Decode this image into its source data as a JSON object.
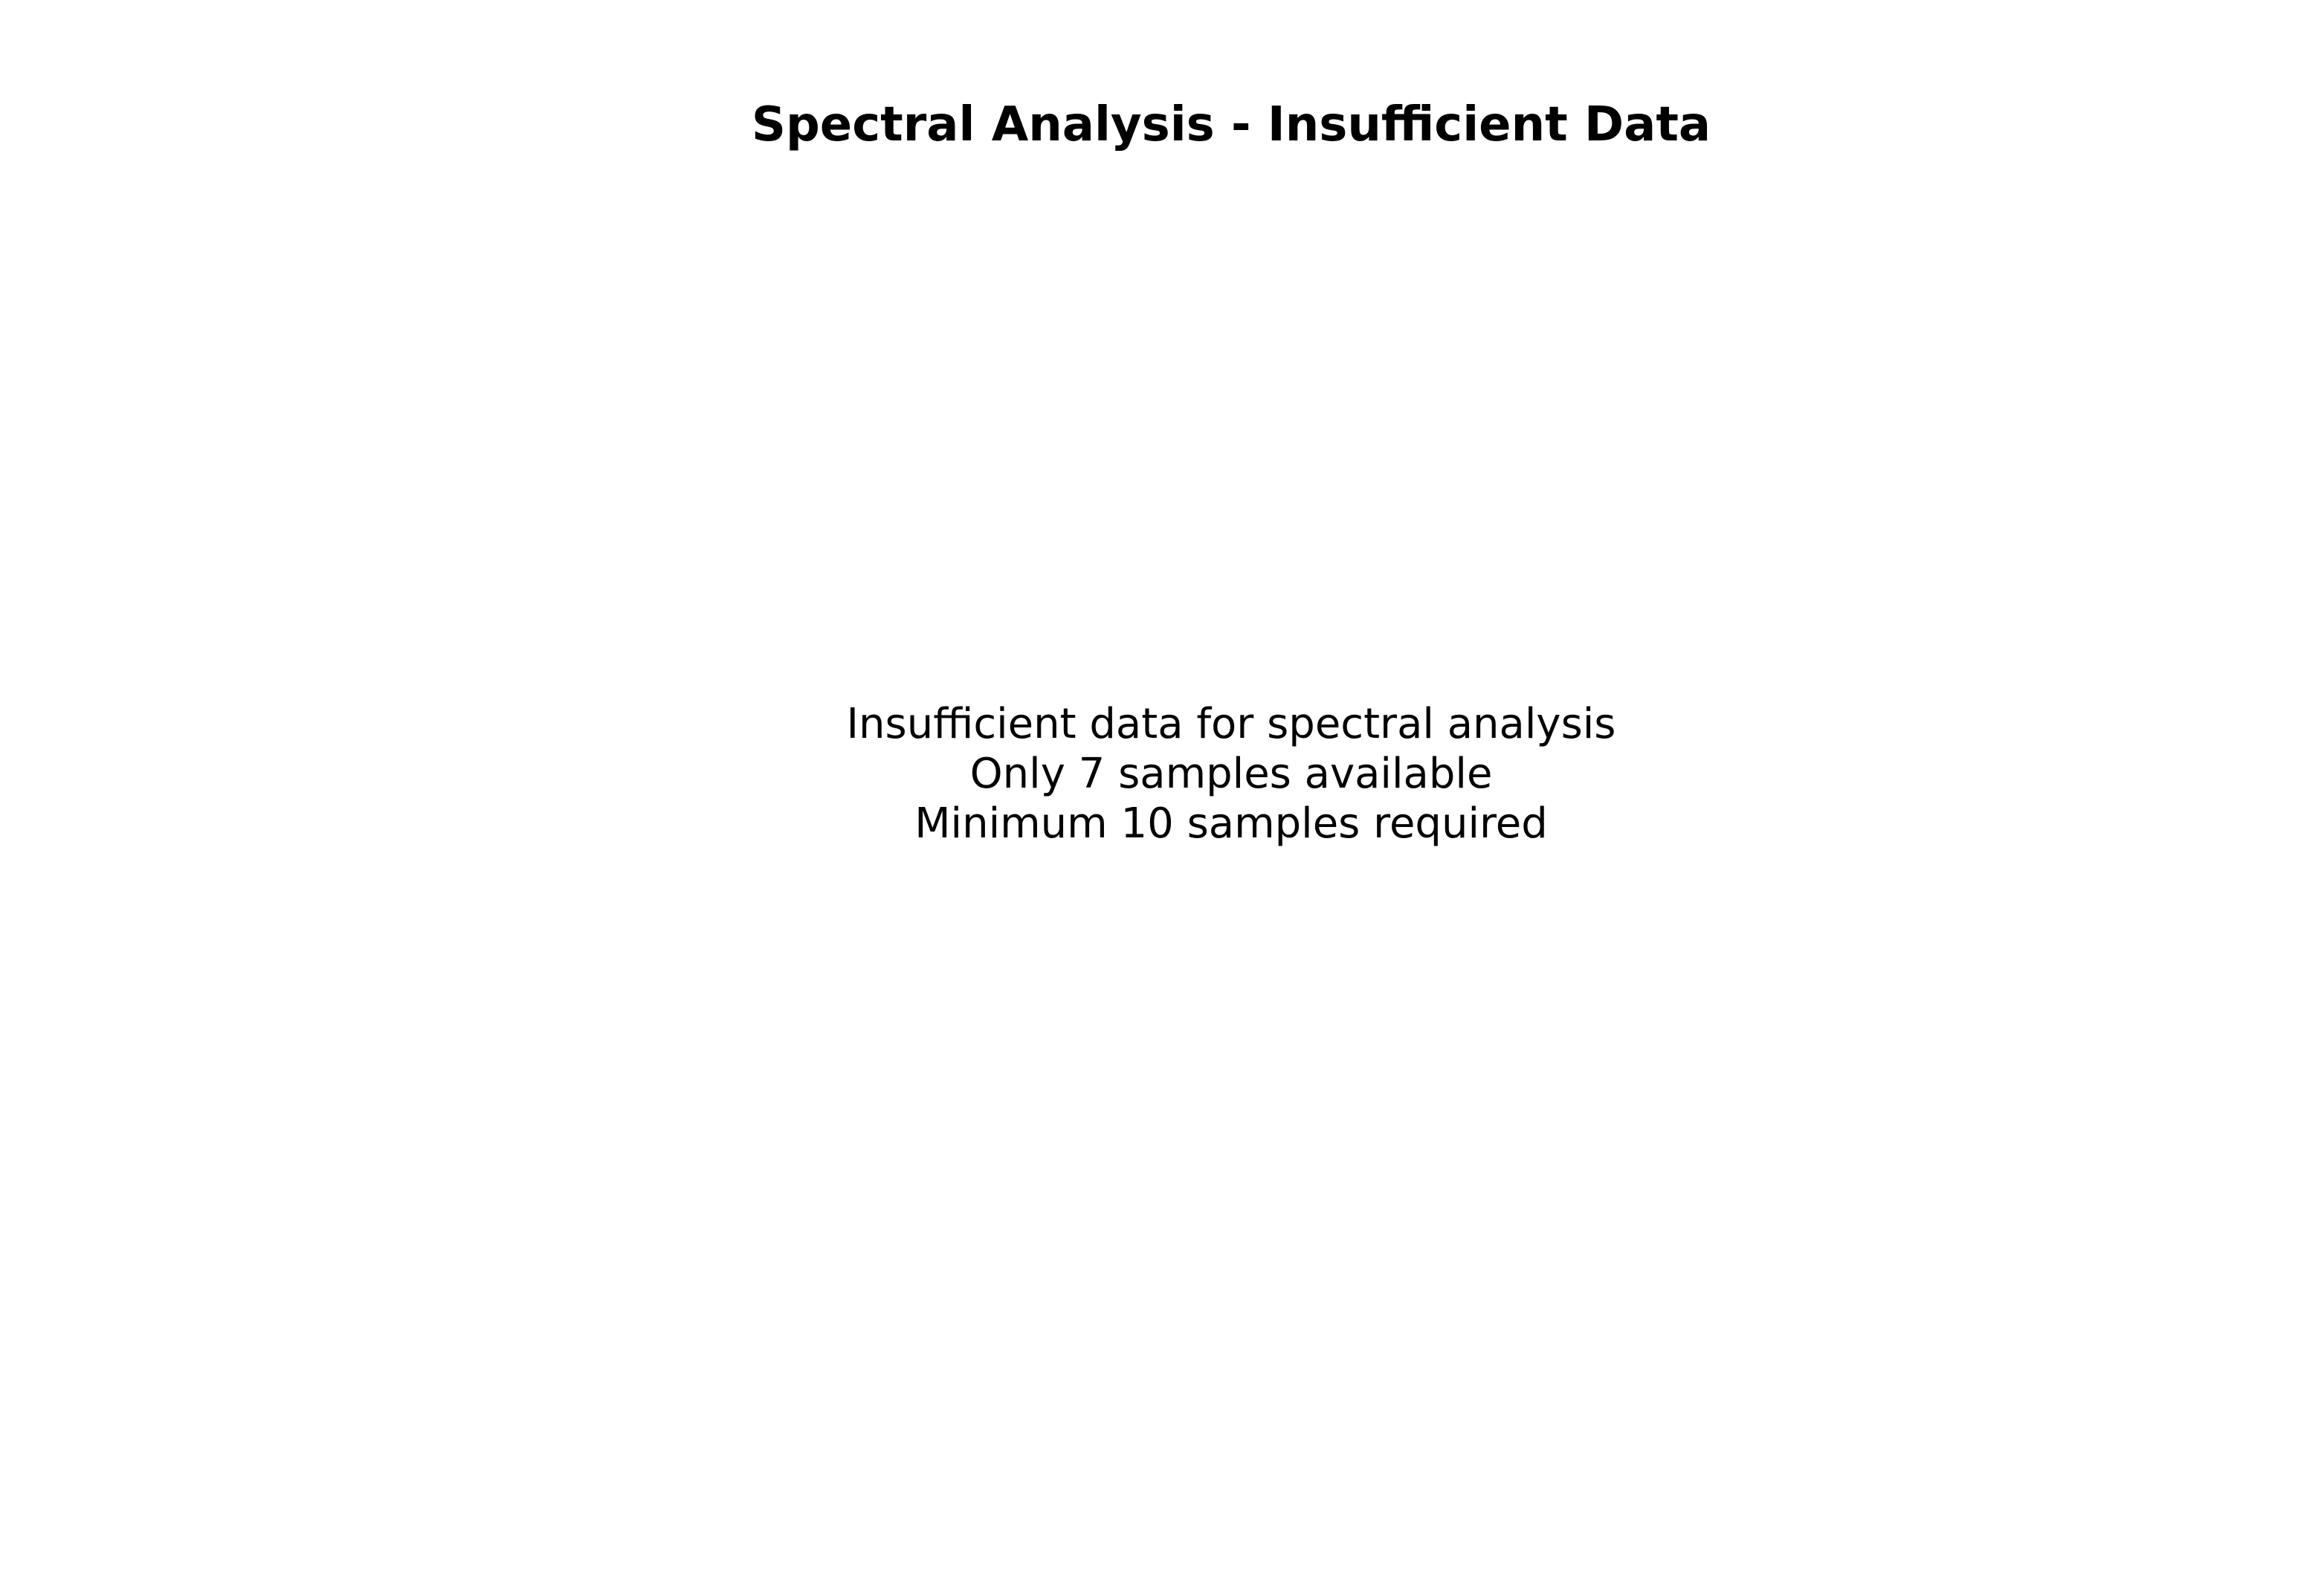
{
  "chart_data": {
    "type": "line",
    "title": "Spectral Analysis - Insufficient Data",
    "xlabel": "",
    "ylabel": "",
    "series": [],
    "grid": false,
    "annotations": [
      "Insufficient data for spectral analysis",
      "Only 7 samples available",
      "Minimum 10 samples required"
    ]
  }
}
